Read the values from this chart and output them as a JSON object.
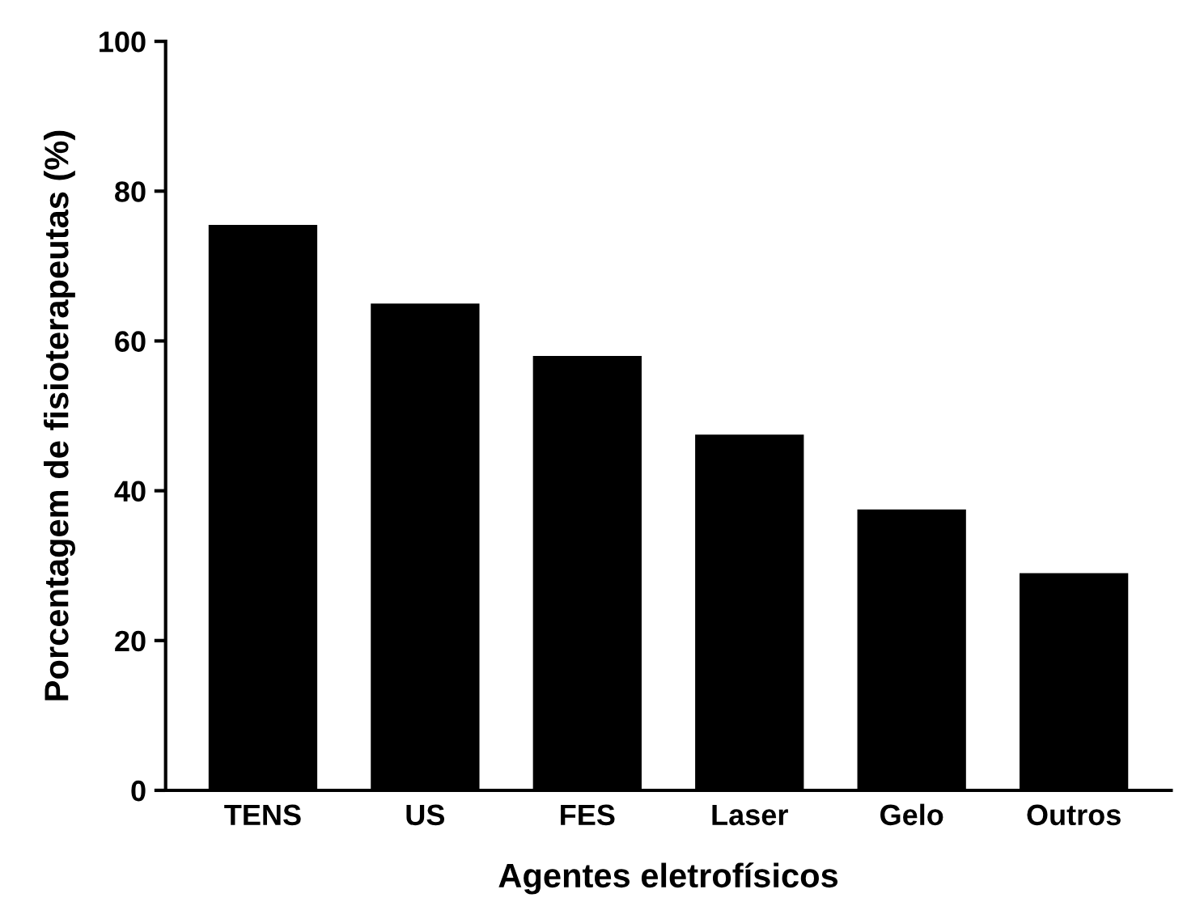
{
  "chart_data": {
    "type": "bar",
    "xlabel": "Agentes eletrofísicos",
    "ylabel": "Porcentagem de fisioterapeutas (%)",
    "categories": [
      "TENS",
      "US",
      "FES",
      "Laser",
      "Gelo",
      "Outros"
    ],
    "values": [
      75.5,
      65,
      58,
      47.5,
      37.5,
      29
    ],
    "color": "#000000",
    "ylim": [
      0,
      100
    ],
    "yticks": [
      0,
      20,
      40,
      60,
      80,
      100
    ],
    "grid": false,
    "legend": false
  }
}
